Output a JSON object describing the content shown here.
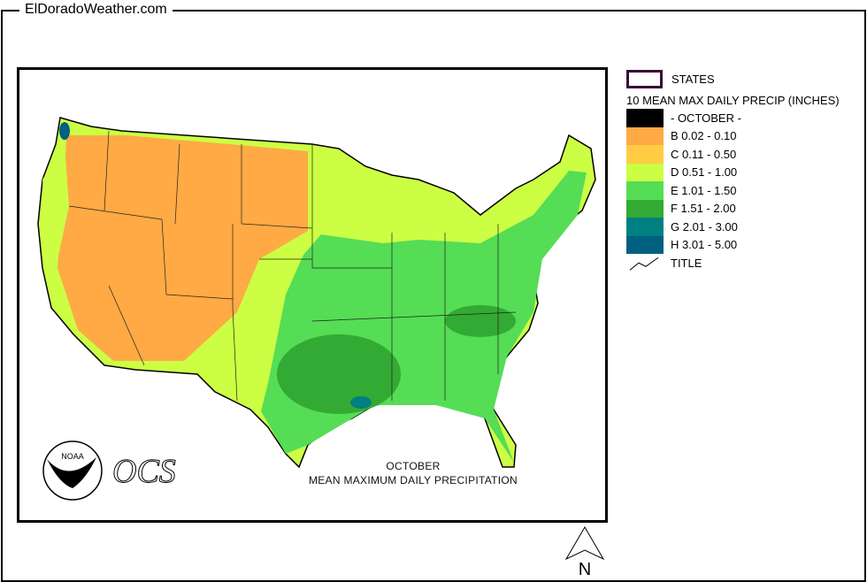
{
  "site_title": "ElDoradoWeather.com",
  "legend": {
    "states_label": "STATES",
    "title": "10 MEAN MAX DAILY PRECIP (INCHES)",
    "items": [
      {
        "label": "- OCTOBER -",
        "color": "#000000"
      },
      {
        "label": "B 0.02 - 0.10",
        "color": "#ffaa44"
      },
      {
        "label": "C 0.11 - 0.50",
        "color": "#ffcc44"
      },
      {
        "label": "D 0.51 - 1.00",
        "color": "#ccff44"
      },
      {
        "label": "E 1.01 - 1.50",
        "color": "#55dd55"
      },
      {
        "label": "F 1.51 - 2.00",
        "color": "#33aa33"
      },
      {
        "label": "G 2.01 - 3.00",
        "color": "#008080"
      },
      {
        "label": "H 3.01 - 5.00",
        "color": "#006080"
      }
    ],
    "title_line_label": "TITLE"
  },
  "map": {
    "caption_month": "OCTOBER",
    "caption_title": "MEAN MAXIMUM DAILY PRECIPITATION",
    "logo_noaa": "NOAA",
    "logo_ocs": "OCS",
    "north_label": "N"
  }
}
